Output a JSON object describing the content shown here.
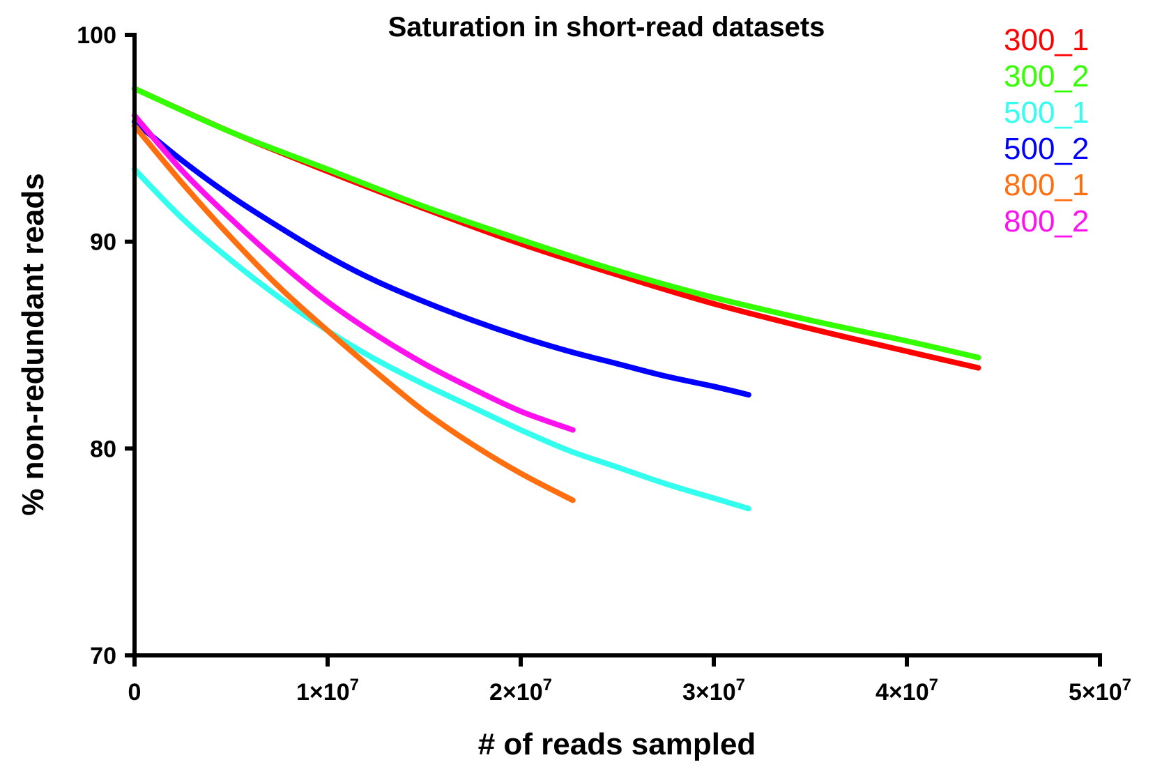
{
  "chart_data": {
    "type": "line",
    "title": "Saturation in short-read datasets",
    "xlabel": "# of reads sampled",
    "ylabel": "% non-redundant reads",
    "xlim": [
      0,
      50000000
    ],
    "ylim": [
      70,
      100
    ],
    "grid": false,
    "legend_position": "top-right",
    "x_ticks": [
      {
        "value": 0,
        "mantissa": "0",
        "exponent": ""
      },
      {
        "value": 10000000,
        "mantissa": "1×10",
        "exponent": "7"
      },
      {
        "value": 20000000,
        "mantissa": "2×10",
        "exponent": "7"
      },
      {
        "value": 30000000,
        "mantissa": "3×10",
        "exponent": "7"
      },
      {
        "value": 40000000,
        "mantissa": "4×10",
        "exponent": "7"
      },
      {
        "value": 50000000,
        "mantissa": "5×10",
        "exponent": "7"
      }
    ],
    "y_ticks": [
      {
        "value": 70,
        "label": "70"
      },
      {
        "value": 80,
        "label": "80"
      },
      {
        "value": 90,
        "label": "90"
      },
      {
        "value": 100,
        "label": "100"
      }
    ],
    "series": [
      {
        "name": "300_1",
        "color": "#ff0000",
        "x": [
          0,
          5000000,
          10000000,
          15000000,
          20000000,
          25000000,
          30000000,
          35000000,
          40000000,
          43700000
        ],
        "y": [
          97.4,
          95.3,
          93.4,
          91.6,
          89.9,
          88.4,
          87.0,
          85.8,
          84.7,
          83.9
        ]
      },
      {
        "name": "300_2",
        "color": "#33ff00",
        "x": [
          0,
          5000000,
          10000000,
          15000000,
          20000000,
          25000000,
          30000000,
          35000000,
          40000000,
          43700000
        ],
        "y": [
          97.4,
          95.3,
          93.5,
          91.7,
          90.1,
          88.6,
          87.3,
          86.2,
          85.2,
          84.4
        ]
      },
      {
        "name": "500_1",
        "color": "#33ffee",
        "x": [
          0,
          2500000,
          5000000,
          7500000,
          10000000,
          12500000,
          15000000,
          17500000,
          20000000,
          22500000,
          25000000,
          27500000,
          30000000,
          31800000
        ],
        "y": [
          93.5,
          91.1,
          89.1,
          87.3,
          85.7,
          84.3,
          83.1,
          82.0,
          80.9,
          79.9,
          79.1,
          78.3,
          77.6,
          77.1
        ]
      },
      {
        "name": "500_2",
        "color": "#0000ff",
        "x": [
          0,
          2500000,
          5000000,
          7500000,
          10000000,
          12500000,
          15000000,
          17500000,
          20000000,
          22500000,
          25000000,
          27500000,
          30000000,
          31800000
        ],
        "y": [
          95.8,
          93.9,
          92.2,
          90.7,
          89.3,
          88.1,
          87.1,
          86.2,
          85.4,
          84.7,
          84.1,
          83.5,
          83.0,
          82.6
        ]
      },
      {
        "name": "800_1",
        "color": "#ff6f10",
        "x": [
          0,
          2500000,
          5000000,
          7500000,
          10000000,
          12500000,
          15000000,
          17500000,
          20000000,
          22700000
        ],
        "y": [
          95.6,
          92.8,
          90.2,
          87.8,
          85.7,
          83.7,
          81.8,
          80.2,
          78.8,
          77.5
        ]
      },
      {
        "name": "800_2",
        "color": "#ff11ee",
        "x": [
          0,
          2500000,
          5000000,
          7500000,
          10000000,
          12500000,
          15000000,
          17500000,
          20000000,
          22700000
        ],
        "y": [
          96.1,
          93.4,
          91.1,
          89.0,
          87.1,
          85.5,
          84.1,
          82.9,
          81.8,
          80.9
        ]
      }
    ]
  }
}
